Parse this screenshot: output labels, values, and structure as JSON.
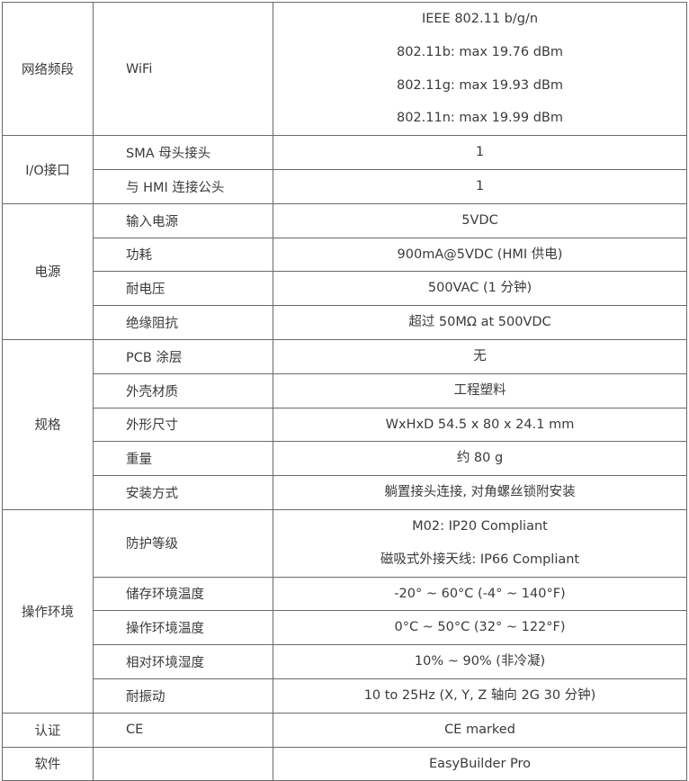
{
  "spec_table": {
    "groups": [
      {
        "category": "网络频段",
        "items": [
          {
            "label": "WiFi",
            "value": [
              "IEEE 802.11 b/g/n",
              "802.11b: max 19.76 dBm",
              "802.11g: max 19.93 dBm",
              "802.11n: max 19.99 dBm"
            ]
          }
        ]
      },
      {
        "category": "I/O接口",
        "items": [
          {
            "label": "SMA 母头接头",
            "value": [
              "1"
            ]
          },
          {
            "label": "与 HMI 连接公头",
            "value": [
              "1"
            ]
          }
        ]
      },
      {
        "category": "电源",
        "items": [
          {
            "label": "输入电源",
            "value": [
              "5VDC"
            ]
          },
          {
            "label": "功耗",
            "value": [
              "900mA@5VDC (HMI 供电)"
            ]
          },
          {
            "label": "耐电压",
            "value": [
              "500VAC (1 分钟)"
            ]
          },
          {
            "label": "绝缘阻抗",
            "value": [
              "超过 50MΩ at 500VDC"
            ]
          }
        ]
      },
      {
        "category": "规格",
        "items": [
          {
            "label": "PCB 涂层",
            "value": [
              "无"
            ]
          },
          {
            "label": "外壳材质",
            "value": [
              "工程塑料"
            ]
          },
          {
            "label": "外形尺寸",
            "value": [
              "WxHxD 54.5 x 80 x 24.1 mm"
            ]
          },
          {
            "label": "重量",
            "value": [
              "约 80 g"
            ]
          },
          {
            "label": "安装方式",
            "value": [
              "躺置接头连接, 对角螺丝锁附安装"
            ]
          }
        ]
      },
      {
        "category": "操作环境",
        "items": [
          {
            "label": "防护等级",
            "value": [
              "M02: IP20 Compliant",
              "磁吸式外接天线: IP66 Compliant"
            ]
          },
          {
            "label": "储存环境温度",
            "value": [
              "-20° ~ 60°C (-4° ~ 140°F)"
            ]
          },
          {
            "label": "操作环境温度",
            "value": [
              "0°C ~ 50°C (32° ~ 122°F)"
            ]
          },
          {
            "label": "相对环境湿度",
            "value": [
              "10% ~ 90% (非冷凝)"
            ]
          },
          {
            "label": "耐振动",
            "value": [
              "10 to 25Hz (X, Y, Z 轴向 2G 30 分钟)"
            ]
          }
        ]
      },
      {
        "category": "认证",
        "items": [
          {
            "label": "CE",
            "value": [
              "CE marked"
            ]
          }
        ]
      },
      {
        "category": "软件",
        "items": [
          {
            "label": "",
            "value": [
              "EasyBuilder Pro"
            ]
          }
        ]
      }
    ]
  }
}
